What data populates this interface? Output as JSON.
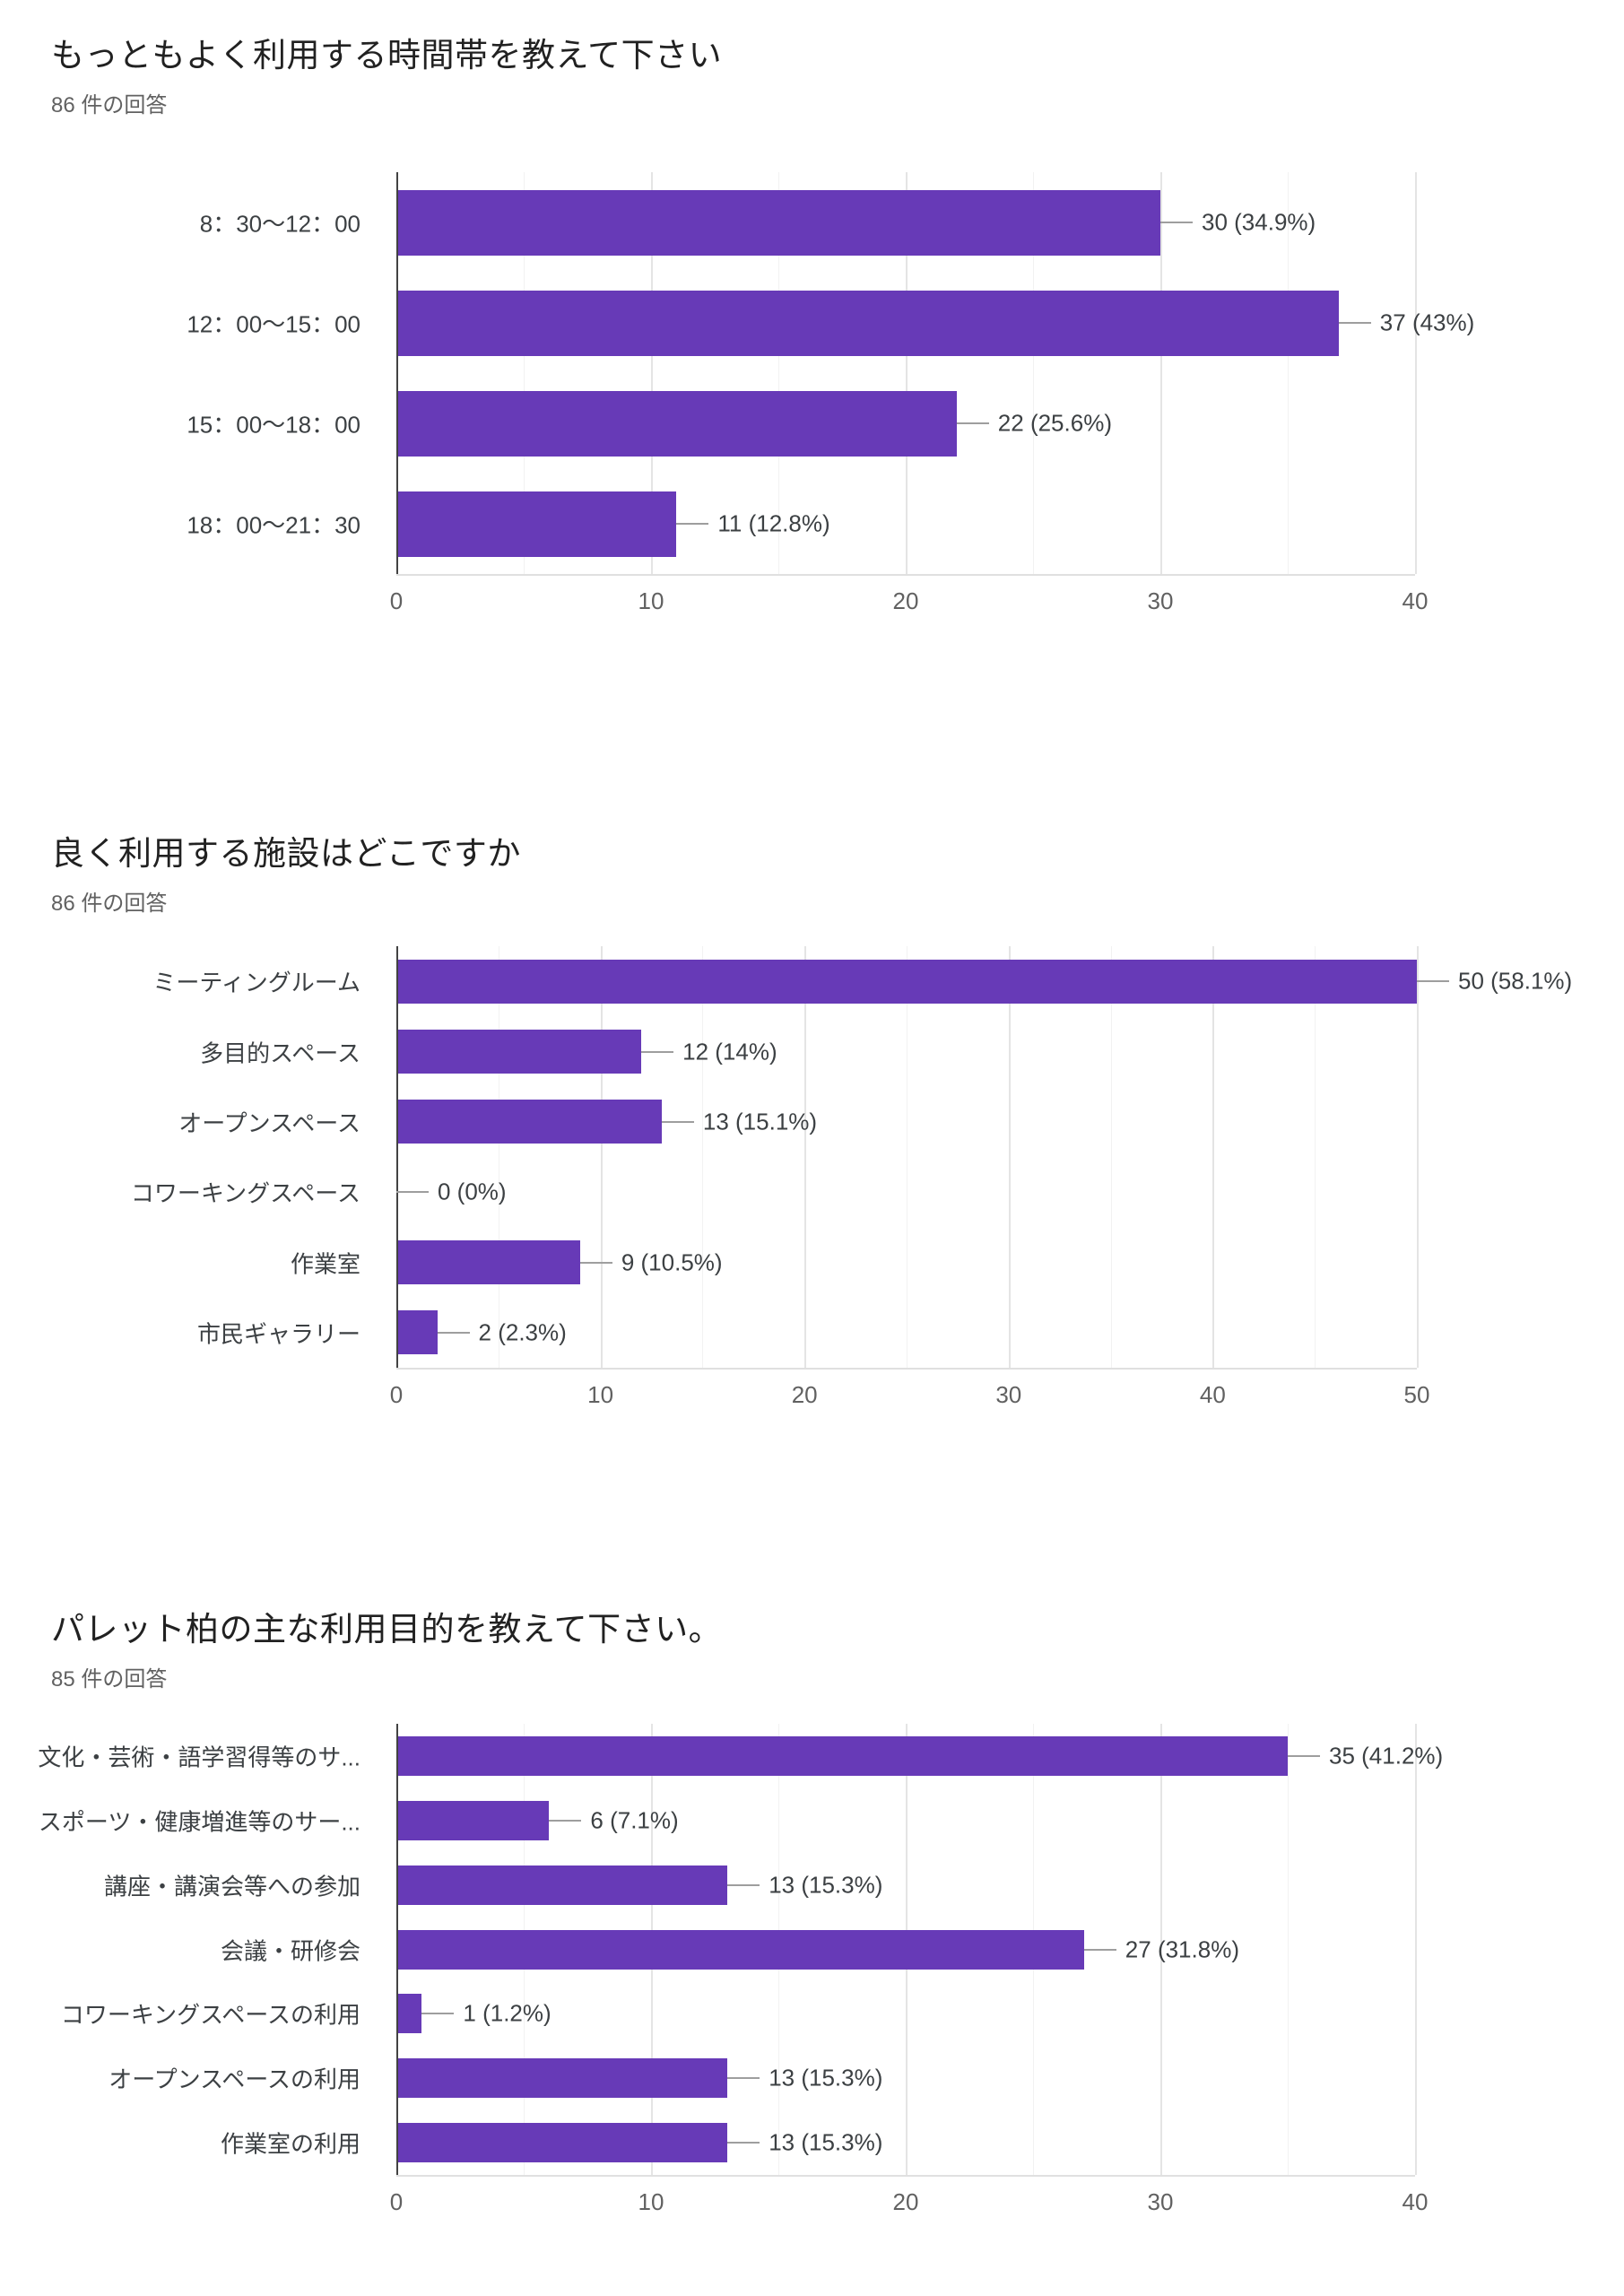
{
  "colors": {
    "bar": "#673ab7",
    "title_text": "#212121",
    "subtitle_text": "#616161",
    "label_text": "#3c4043",
    "tick_text": "#616161",
    "axis": "#424242",
    "gridline_major": "#e4e4e4",
    "gridline_minor": "#f2f2f2",
    "connector": "#9e9e9e"
  },
  "chart_data": [
    {
      "type": "bar",
      "orientation": "horizontal",
      "title": "もっともよく利用する時間帯を教えて下さい",
      "subtitle": "86 件の回答",
      "categories": [
        "8：30〜12：00",
        "12：00〜15：00",
        "15：00〜18：00",
        "18：00〜21：30"
      ],
      "values": [
        30,
        37,
        22,
        11
      ],
      "labels": [
        "30 (34.9%)",
        "37 (43%)",
        "22 (25.6%)",
        "11 (12.8%)"
      ],
      "xlim": [
        0,
        40
      ],
      "xticks": [
        0,
        10,
        20,
        30,
        40
      ],
      "grid": true,
      "legend": "none",
      "bar_color": "#673ab7"
    },
    {
      "type": "bar",
      "orientation": "horizontal",
      "title": "良く利用する施設はどこですか",
      "subtitle": "86 件の回答",
      "categories": [
        "ミーティングルーム",
        "多目的スペース",
        "オープンスペース",
        "コワーキングスペース",
        "作業室",
        "市民ギャラリー"
      ],
      "values": [
        50,
        12,
        13,
        0,
        9,
        2
      ],
      "labels": [
        "50 (58.1%)",
        "12 (14%)",
        "13 (15.1%)",
        "0 (0%)",
        "9 (10.5%)",
        "2 (2.3%)"
      ],
      "xlim": [
        0,
        50
      ],
      "xticks": [
        0,
        10,
        20,
        30,
        40,
        50
      ],
      "grid": true,
      "legend": "none",
      "bar_color": "#673ab7"
    },
    {
      "type": "bar",
      "orientation": "horizontal",
      "title": "パレット柏の主な利用目的を教えて下さい。",
      "subtitle": "85 件の回答",
      "categories": [
        "文化・芸術・語学習得等のサ...",
        "スポーツ・健康増進等のサー...",
        "講座・講演会等への参加",
        "会議・研修会",
        "コワーキングスペースの利用",
        "オープンスペースの利用",
        "作業室の利用"
      ],
      "values": [
        35,
        6,
        13,
        27,
        1,
        13,
        13
      ],
      "labels": [
        "35 (41.2%)",
        "6 (7.1%)",
        "13 (15.3%)",
        "27 (31.8%)",
        "1 (1.2%)",
        "13 (15.3%)",
        "13 (15.3%)"
      ],
      "xlim": [
        0,
        40
      ],
      "xticks": [
        0,
        10,
        20,
        30,
        40
      ],
      "grid": true,
      "legend": "none",
      "bar_color": "#673ab7"
    }
  ]
}
